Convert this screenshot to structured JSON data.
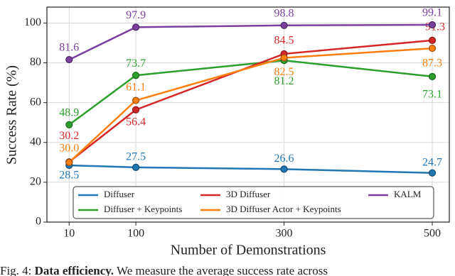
{
  "chart_data": {
    "type": "line",
    "x_label": "Number of Demonstrations",
    "y_label": "Success Rate (%)",
    "x": [
      10,
      100,
      300,
      500
    ],
    "xlim": [
      -20,
      523
    ],
    "xticks": [
      10,
      100,
      300,
      500
    ],
    "ylim": [
      0,
      108
    ],
    "yticks": [
      0,
      20,
      40,
      60,
      80,
      100
    ],
    "grid": true,
    "legend": "bottom",
    "series": [
      {
        "name": "Diffuser",
        "color": "#1f77b4",
        "values": [
          28.5,
          27.5,
          26.6,
          24.7
        ]
      },
      {
        "name": "Diffuser + Keypoints",
        "color": "#2ca02c",
        "values": [
          48.9,
          73.7,
          81.2,
          73.1
        ]
      },
      {
        "name": "3D Diffuser",
        "color": "#d62728",
        "values": [
          30.2,
          56.4,
          84.5,
          91.3
        ]
      },
      {
        "name": "3D Diffuser Actor + Keypoints",
        "color": "#ff7f0e",
        "values": [
          30.0,
          61.1,
          82.5,
          87.3
        ],
        "value_labels": [
          "30.0",
          "61.1",
          "82.5",
          "87.3"
        ]
      },
      {
        "name": "KALM",
        "color": "#7b3fa0",
        "values": [
          81.6,
          97.9,
          98.8,
          99.1
        ]
      }
    ]
  },
  "caption": {
    "label": "Fig. 4:",
    "bold": "Data efficiency.",
    "text": "We measure the average success rate across"
  }
}
